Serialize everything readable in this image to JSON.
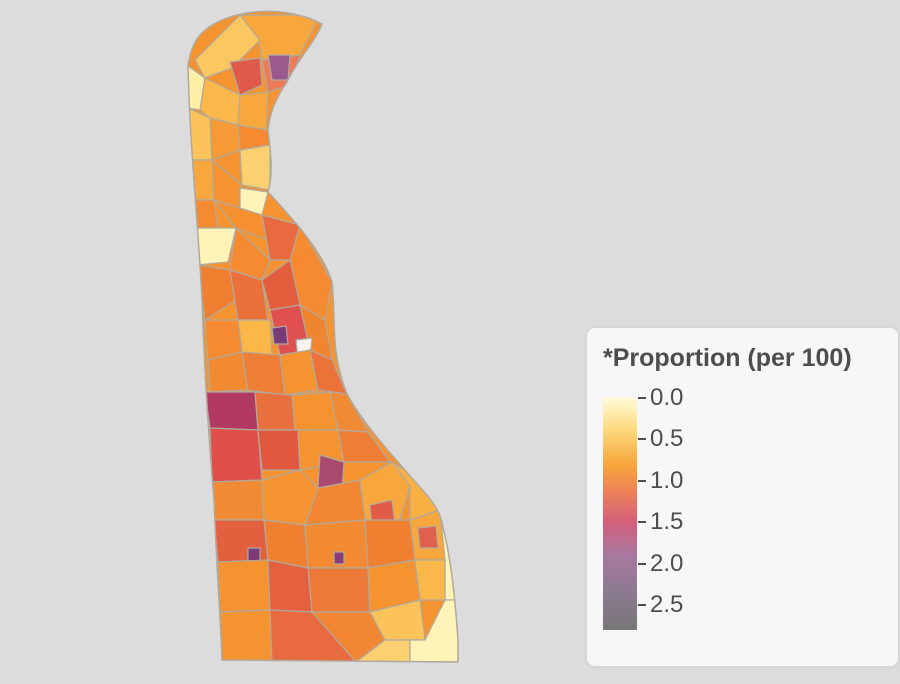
{
  "map": {
    "region": "Delaware",
    "background_color": "#dcdcdc",
    "outline_color": "#b0aa9e"
  },
  "legend": {
    "title": "*Proportion (per 100)",
    "ticks": [
      {
        "value": 0.0,
        "label": "0.0"
      },
      {
        "value": 0.5,
        "label": "0.5"
      },
      {
        "value": 1.0,
        "label": "1.0"
      },
      {
        "value": 1.5,
        "label": "1.5"
      },
      {
        "value": 2.0,
        "label": "2.0"
      },
      {
        "value": 2.5,
        "label": "2.5"
      }
    ],
    "range": [
      0.0,
      2.8
    ],
    "color_stops": [
      {
        "value": 0.0,
        "color": "#fffbd6"
      },
      {
        "value": 0.4,
        "color": "#fcd77a"
      },
      {
        "value": 0.8,
        "color": "#f8a73c"
      },
      {
        "value": 1.1,
        "color": "#ee8455"
      },
      {
        "value": 1.5,
        "color": "#d35f7c"
      },
      {
        "value": 1.9,
        "color": "#a8789f"
      },
      {
        "value": 2.3,
        "color": "#8d7a91"
      },
      {
        "value": 2.8,
        "color": "#777777"
      }
    ]
  }
}
